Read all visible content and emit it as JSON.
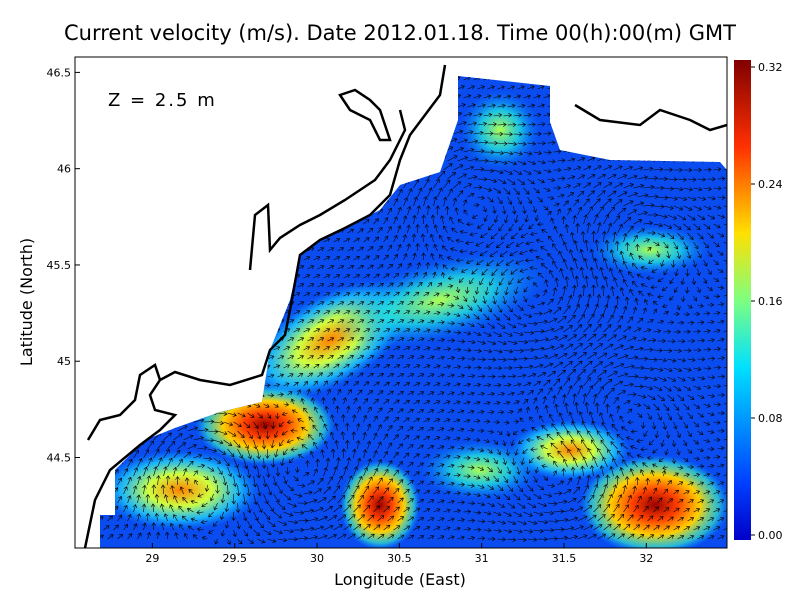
{
  "chart_data": {
    "type": "vector-field",
    "title": "Current velocity (m/s). Date 2012.01.18. Time 00(h):00(m) GMT",
    "annotation": "Z = 2.5 m",
    "x_label": "Longitude (East)",
    "y_label": "Latitude (North)",
    "xlim": [
      28.53,
      32.49
    ],
    "xticks": [
      29,
      29.5,
      30,
      30.5,
      31,
      31.5,
      32
    ],
    "ylim": [
      44.03,
      46.58
    ],
    "yticks": [
      44.5,
      45,
      45.5,
      46,
      46.5
    ],
    "colorbar": {
      "lim": [
        0,
        0.32
      ],
      "ticks": [
        {
          "value": 0,
          "label": "0.00"
        },
        0.08,
        0.16,
        0.24,
        0.32
      ]
    }
  }
}
